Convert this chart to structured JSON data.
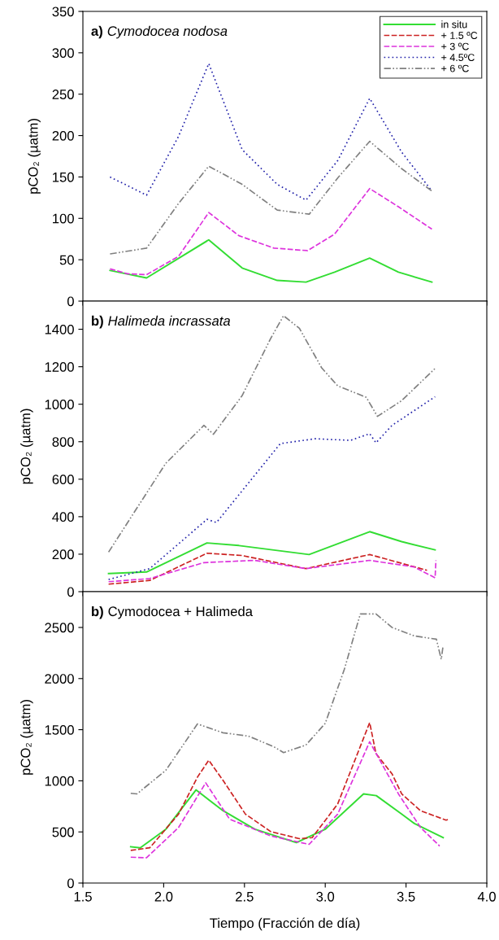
{
  "chart_data": [
    {
      "type": "line",
      "title": "a) Cymodocea nodosa",
      "ylabel": "pCO₂ (µatm)",
      "xlim": [
        1.5,
        4.0
      ],
      "xticks": [
        1.5,
        2.0,
        2.5,
        3.0,
        3.5,
        4.0
      ],
      "ylim": [
        0,
        350
      ],
      "yticks": [
        0,
        50,
        100,
        150,
        200,
        250,
        300,
        350
      ],
      "tick_labels": "y",
      "grid": false,
      "legend": "top right",
      "series": [
        {
          "name": "in situ",
          "color": "#33dd33",
          "line_style": "solid",
          "x": [
            1.668,
            1.894,
            2.279,
            2.486,
            2.703,
            2.881,
            3.058,
            3.275,
            3.453,
            3.66
          ],
          "values": [
            37,
            28,
            74,
            40,
            25,
            23,
            35,
            52,
            35,
            23
          ]
        },
        {
          "name": "+ 1.5 ºC",
          "color": "#cc2222",
          "line_style": "dashed"
        },
        {
          "name": "+ 3 ºC",
          "color": "#dd33dd",
          "line_style": "dashed",
          "x": [
            1.668,
            1.776,
            1.894,
            2.092,
            2.279,
            2.466,
            2.683,
            2.891,
            3.058,
            3.275,
            3.453,
            3.66
          ],
          "values": [
            39,
            33,
            32,
            54,
            107,
            79,
            64,
            61,
            81,
            136,
            114,
            87
          ]
        },
        {
          "name": "+ 4.5ºC",
          "color": "#2222aa",
          "line_style": "dotted",
          "x": [
            1.668,
            1.894,
            2.092,
            2.279,
            2.486,
            2.703,
            2.881,
            3.078,
            3.275,
            3.473,
            3.66
          ],
          "values": [
            150,
            128,
            199,
            287,
            183,
            141,
            122,
            170,
            245,
            180,
            133
          ]
        },
        {
          "name": "+ 6 ºC",
          "color": "#808080",
          "line_style": "dashdotdot",
          "x": [
            1.668,
            1.894,
            2.092,
            2.279,
            2.486,
            2.703,
            2.901,
            3.078,
            3.275,
            3.473,
            3.66
          ],
          "values": [
            57,
            64,
            118,
            163,
            141,
            110,
            105,
            149,
            193,
            160,
            133
          ]
        }
      ]
    },
    {
      "type": "line",
      "title": "b) Halimeda incrassata",
      "ylabel": "pCO₂ (µatm)",
      "xlim": [
        1.5,
        4.0
      ],
      "xticks": [
        1.5,
        2.0,
        2.5,
        3.0,
        3.5,
        4.0
      ],
      "ylim": [
        0,
        1550
      ],
      "yticks": [
        0,
        200,
        400,
        600,
        800,
        1000,
        1200,
        1400
      ],
      "tick_labels": "y",
      "grid": false,
      "series": [
        {
          "color": "#33dd33",
          "line_style": "solid",
          "x": [
            1.659,
            1.894,
            2.268,
            2.466,
            2.9,
            3.275,
            3.473,
            3.68
          ],
          "values": [
            97,
            105,
            260,
            246,
            198,
            320,
            267,
            223
          ]
        },
        {
          "color": "#cc2222",
          "line_style": "dashed",
          "x": [
            1.659,
            1.914,
            2.268,
            2.485,
            2.88,
            3.275,
            3.63
          ],
          "values": [
            40,
            60,
            205,
            193,
            123,
            198,
            114
          ]
        },
        {
          "color": "#dd33dd",
          "line_style": "dashed",
          "x": [
            1.659,
            1.914,
            2.249,
            2.565,
            2.88,
            3.275,
            3.55,
            3.68,
            3.685
          ],
          "values": [
            53,
            70,
            155,
            167,
            123,
            167,
            132,
            74,
            167
          ]
        },
        {
          "color": "#2222aa",
          "line_style": "dotted",
          "x": [
            1.659,
            1.914,
            2.268,
            2.327,
            2.722,
            2.939,
            3.156,
            3.275,
            3.314,
            3.413,
            3.68
          ],
          "values": [
            65,
            123,
            386,
            369,
            790,
            816,
            807,
            843,
            794,
            887,
            1040
          ]
        },
        {
          "color": "#808080",
          "line_style": "dashdotdot",
          "x": [
            1.659,
            1.777,
            2.013,
            2.249,
            2.308,
            2.485,
            2.663,
            2.742,
            2.84,
            2.978,
            3.077,
            3.254,
            3.323,
            3.473,
            3.68
          ],
          "values": [
            211,
            369,
            685,
            887,
            840,
            1045,
            1352,
            1472,
            1405,
            1194,
            1098,
            1037,
            935,
            1019,
            1191
          ]
        }
      ]
    },
    {
      "type": "line",
      "title": "b) Cymodocea + Halimeda",
      "ylabel": "pCO₂ (µatm)",
      "xlabel": "Tiempo (Fracción de día)",
      "xlim": [
        1.5,
        4.0
      ],
      "xticks": [
        1.5,
        {
          "value": 2,
          "label": "2.0"
        },
        2.5,
        {
          "value": 3,
          "label": "3.0"
        },
        3.5,
        {
          "value": 4,
          "label": "4.0"
        }
      ],
      "ylim": [
        0,
        2850
      ],
      "yticks": [
        0,
        500,
        1000,
        1500,
        2000,
        2500
      ],
      "grid": false,
      "series": [
        {
          "color": "#33dd33",
          "line_style": "solid",
          "x": [
            1.796,
            1.855,
            2.013,
            2.2,
            2.368,
            2.565,
            2.821,
            3.0,
            3.237,
            3.316,
            3.473,
            3.552,
            3.73
          ],
          "values": [
            355,
            345,
            526,
            911,
            707,
            526,
            395,
            526,
            872,
            855,
            674,
            582,
            444
          ]
        },
        {
          "color": "#cc2222",
          "line_style": "dashed",
          "x": [
            1.796,
            1.914,
            2.092,
            2.209,
            2.279,
            2.368,
            2.506,
            2.663,
            2.84,
            2.919,
            3.077,
            3.275,
            3.314,
            3.413,
            3.473,
            3.59,
            3.748,
            3.768
          ],
          "values": [
            319,
            345,
            674,
            1036,
            1201,
            1003,
            674,
            503,
            434,
            444,
            773,
            1569,
            1266,
            1069,
            872,
            707,
            615,
            625
          ]
        },
        {
          "color": "#dd33dd",
          "line_style": "dashed",
          "x": [
            1.796,
            1.894,
            2.092,
            2.26,
            2.408,
            2.663,
            2.9,
            3.077,
            3.275,
            3.453,
            3.59,
            3.708
          ],
          "values": [
            253,
            247,
            543,
            980,
            625,
            461,
            378,
            674,
            1382,
            872,
            543,
            362
          ]
        },
        {
          "color": "#808080",
          "line_style": "dashdotdot",
          "x": [
            1.796,
            1.835,
            2.013,
            2.209,
            2.367,
            2.525,
            2.683,
            2.742,
            2.88,
            3.0,
            3.118,
            3.217,
            3.314,
            3.413,
            3.55,
            3.688,
            3.718,
            3.728
          ],
          "values": [
            878,
            872,
            1102,
            1556,
            1470,
            1437,
            1332,
            1276,
            1349,
            1562,
            2089,
            2632,
            2632,
            2500,
            2418,
            2385,
            2188,
            2303
          ]
        }
      ]
    }
  ]
}
